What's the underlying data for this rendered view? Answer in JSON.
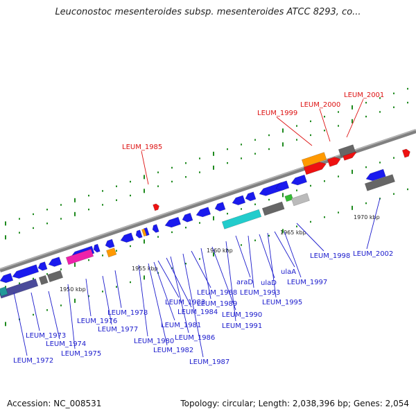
{
  "title": "Leuconostoc mesenteroides subsp. mesenteroides ATCC 8293, co...",
  "footer": {
    "accession": "Accession: NC_008531",
    "stats": "Topology: circular; Length: 2,038,396 bp; Genes: 2,054"
  },
  "colors": {
    "backbone": "#808080",
    "tick_dot": "#1e8a1e",
    "blue": "#1a1aee",
    "red": "#ee1111",
    "orange": "#ff9900",
    "gray": "#666666",
    "light_gray": "#bbbbbb",
    "cyan": "#22cccc",
    "navy": "#4a4a9a",
    "magenta": "#ee22aa",
    "green": "#33bb33",
    "teal": "#229999",
    "label_blue": "#1a1acc",
    "label_red": "#dd1111"
  },
  "scale_labels": [
    "1950 kbp",
    "1955 kbp",
    "1960 kbp",
    "1965 kbp",
    "1970 kbp"
  ],
  "gene_labels": {
    "blue": [
      "LEUM_1972",
      "LEUM_1973",
      "LEUM_1974",
      "LEUM_1975",
      "LEUM_1976",
      "LEUM_1977",
      "LEUM_1978",
      "LEUM_1980",
      "LEUM_1981",
      "LEUM_1982",
      "LEUM_1983",
      "LEUM_1984",
      "LEUM_1986",
      "LEUM_1987",
      "LEUM_1988",
      "LEUM_1989",
      "LEUM_1990",
      "LEUM_1991",
      "araD",
      "LEUM_1993",
      "ulaD",
      "LEUM_1995",
      "ulaA",
      "LEUM_1997",
      "LEUM_1998",
      "LEUM_2002"
    ],
    "red": [
      "LEUM_1985",
      "LEUM_1999",
      "LEUM_2000",
      "LEUM_2001"
    ]
  }
}
